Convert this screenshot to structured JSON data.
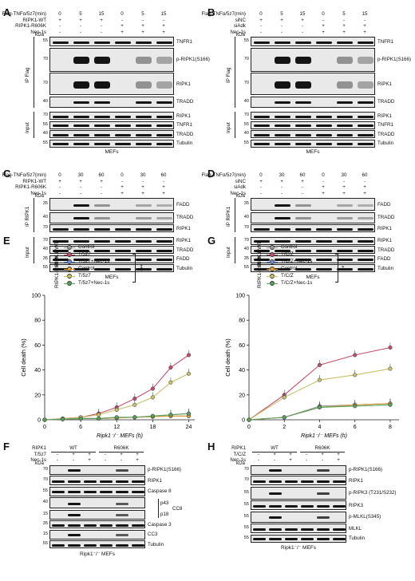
{
  "panels": {
    "A": {
      "letter": "A",
      "headers": [
        {
          "label": "Flag-TNFα/5z7(min)",
          "values": [
            "0",
            "5",
            "15",
            "0",
            "5",
            "15"
          ]
        },
        {
          "label": "RIPK1-WT",
          "values": [
            "+",
            "+",
            "+",
            "-",
            "-",
            "-"
          ]
        },
        {
          "label": "RIPK1-R606K",
          "values": [
            "-",
            "-",
            "-",
            "+",
            "+",
            "+"
          ]
        },
        {
          "label": "Nec-1s",
          "values": [
            "-",
            "-",
            "-",
            "+",
            "+",
            "+"
          ]
        }
      ],
      "kda": "kDa",
      "group1": "IP Flag",
      "group2": "Input",
      "blots": [
        {
          "mw": "55",
          "label": "TNFR1"
        },
        {
          "mw": "70",
          "label": "p-RIPK1(S166)"
        },
        {
          "mw": "70",
          "label": "RIPK1"
        },
        {
          "mw": "40",
          "label": "TRADD"
        },
        {
          "mw": "70",
          "label": "RIPK1"
        },
        {
          "mw": "55",
          "label": "TNFR1"
        },
        {
          "mw": "40",
          "label": "TRADD"
        },
        {
          "mw": "55",
          "label": "Tubulin"
        }
      ],
      "footer": "MEFs"
    },
    "B": {
      "letter": "B",
      "headers": [
        {
          "label": "Flag-TNFα/5z7(min)",
          "values": [
            "0",
            "5",
            "15",
            "0",
            "5",
            "15"
          ]
        },
        {
          "label": "siNC",
          "values": [
            "+",
            "+",
            "+",
            "-",
            "-",
            "-"
          ]
        },
        {
          "label": "siAdk",
          "values": [
            "-",
            "-",
            "-",
            "+",
            "+",
            "+"
          ]
        },
        {
          "label": "Nec-1s",
          "values": [
            "-",
            "-",
            "-",
            "+",
            "+",
            "+"
          ]
        }
      ],
      "kda": "kDa",
      "group1": "IP Flag",
      "group2": "Input",
      "blots": [
        {
          "mw": "55",
          "label": "TNFR1"
        },
        {
          "mw": "70",
          "label": "p-RIPK1(S166)"
        },
        {
          "mw": "70",
          "label": "RIPK1"
        },
        {
          "mw": "40",
          "label": "TRADD"
        },
        {
          "mw": "70",
          "label": "RIPK1"
        },
        {
          "mw": "55",
          "label": "TNFR1"
        },
        {
          "mw": "40",
          "label": "TRADD"
        },
        {
          "mw": "55",
          "label": "Tubulin"
        }
      ],
      "footer": "MEFs"
    },
    "C": {
      "letter": "C",
      "headers": [
        {
          "label": "Flag-TNFα/5z7(min)",
          "values": [
            "0",
            "30",
            "60",
            "0",
            "30",
            "60"
          ]
        },
        {
          "label": "RIPK1-WT",
          "values": [
            "+",
            "+",
            "+",
            "-",
            "-",
            "-"
          ]
        },
        {
          "label": "RIPK1-R606K",
          "values": [
            "-",
            "-",
            "-",
            "+",
            "+",
            "+"
          ]
        },
        {
          "label": "Nec-1s",
          "values": [
            "-",
            "-",
            "-",
            "+",
            "+",
            "+"
          ]
        }
      ],
      "kda": "kDa",
      "group1": "IP RIPK1",
      "group2": "Input",
      "blots": [
        {
          "mw": "35",
          "label": "FADD"
        },
        {
          "mw": "40",
          "label": "TRADD"
        },
        {
          "mw": "70",
          "label": "RIPK1"
        },
        {
          "mw": "70",
          "label": "RIPK1"
        },
        {
          "mw": "40",
          "label": "TRADD"
        },
        {
          "mw": "35",
          "label": "FADD"
        },
        {
          "mw": "55",
          "label": "Tubulin"
        }
      ],
      "footer": "MEFs"
    },
    "D": {
      "letter": "D",
      "headers": [
        {
          "label": "Flag-TNFα/5z7(min)",
          "values": [
            "0",
            "30",
            "60",
            "0",
            "30",
            "60"
          ]
        },
        {
          "label": "siNC",
          "values": [
            "+",
            "+",
            "+",
            "-",
            "-",
            "-"
          ]
        },
        {
          "label": "siAdk",
          "values": [
            "-",
            "-",
            "-",
            "+",
            "+",
            "+"
          ]
        },
        {
          "label": "Nec-1s",
          "values": [
            "-",
            "-",
            "-",
            "+",
            "+",
            "+"
          ]
        }
      ],
      "kda": "kDa",
      "group1": "IP RIPK1",
      "group2": "Input",
      "blots": [
        {
          "mw": "35",
          "label": "FADD"
        },
        {
          "mw": "40",
          "label": "TRADD"
        },
        {
          "mw": "70",
          "label": "RIPK1"
        },
        {
          "mw": "70",
          "label": "RIPK1"
        },
        {
          "mw": "40",
          "label": "TRADD"
        },
        {
          "mw": "35",
          "label": "FADD"
        },
        {
          "mw": "55",
          "label": "Tubulin"
        }
      ],
      "footer": "MEFs"
    },
    "F": {
      "letter": "F",
      "headers": [
        {
          "label": "RIPK1",
          "values": [
            "WT",
            "R606K"
          ]
        },
        {
          "label": "T/5z7",
          "values": [
            "-",
            "+",
            "+",
            "-",
            "+",
            "+"
          ]
        },
        {
          "label": "Nec-1s",
          "values": [
            "-",
            "-",
            "+",
            "-",
            "-",
            "+"
          ]
        }
      ],
      "kda": "kDa",
      "blots": [
        {
          "mw": "70",
          "label": "p-RIPK1(S166)"
        },
        {
          "mw": "70",
          "label": "RIPK1"
        },
        {
          "mw": "55",
          "label": "Caspase 8"
        },
        {
          "mw": "40",
          "label": "p43"
        },
        {
          "mw": "15",
          "label": "p18"
        },
        {
          "mw": "35",
          "label": "Caspase 3"
        },
        {
          "mw": "15",
          "label": "CC3"
        },
        {
          "mw": "55",
          "label": "Tubulin"
        }
      ],
      "cc8": "CC8",
      "footer": "Ripk1⁻/⁻ MEFs"
    },
    "H": {
      "letter": "H",
      "headers": [
        {
          "label": "RIPK1",
          "values": [
            "WT",
            "R606K"
          ]
        },
        {
          "label": "T/C/Z",
          "values": [
            "-",
            "+",
            "+",
            "-",
            "+",
            "+"
          ]
        },
        {
          "label": "Nec-1s",
          "values": [
            "-",
            "-",
            "+",
            "-",
            "-",
            "+"
          ]
        }
      ],
      "kda": "kDa",
      "blots": [
        {
          "mw": "70",
          "label": "p-RIPK1(S166)"
        },
        {
          "mw": "70",
          "label": "RIPK1"
        },
        {
          "mw": "55",
          "label": "p-RIPK3 (T231/S232)"
        },
        {
          "mw": "55",
          "label": "RIPK3"
        },
        {
          "mw": "55",
          "label": "p-MLKL(S345)"
        },
        {
          "mw": "55",
          "label": "MLKL"
        },
        {
          "mw": "55",
          "label": "Tubulin"
        }
      ],
      "footer": "Ripk1⁻/⁻ MEFs"
    }
  },
  "charts": {
    "E_letter": "E",
    "G_letter": "G",
    "E_group1": "RIPK1-WT",
    "E_group2": "RIPK1-R606K",
    "G_group1": "RIPK1-WT",
    "G_group2": "RIPK1-R606K",
    "E_sig": "***",
    "G_sig": "**"
  },
  "chart_data": [
    {
      "type": "line",
      "panel": "E",
      "xlabel": "Ripk1⁻/⁻ MEFs (h)",
      "ylabel": "Cell death (%)",
      "x": [
        0,
        3,
        6,
        9,
        12,
        15,
        18,
        21,
        24
      ],
      "xticks": [
        0,
        6,
        12,
        18,
        24
      ],
      "yticks": [
        0,
        20,
        40,
        60,
        80,
        100
      ],
      "ylim": [
        0,
        100
      ],
      "xlim": [
        0,
        25
      ],
      "series": [
        {
          "name": "Control",
          "group": "RIPK1-WT",
          "color": "#9a9a9a",
          "values": [
            0,
            0.5,
            1,
            1,
            1.5,
            2,
            2.5,
            3,
            3
          ]
        },
        {
          "name": "T/5z7",
          "group": "RIPK1-WT",
          "color": "#c0506a",
          "values": [
            0,
            1,
            2,
            5,
            10,
            17,
            25,
            42,
            52
          ]
        },
        {
          "name": "T/5z7+Nec-1s",
          "group": "RIPK1-WT",
          "color": "#6f8ed8",
          "values": [
            0,
            0.5,
            1,
            1,
            2,
            2,
            3,
            4,
            5
          ]
        },
        {
          "name": "Control",
          "group": "RIPK1-R606K",
          "color": "#e0a030",
          "values": [
            0,
            0.5,
            1,
            1,
            1.5,
            2,
            2.5,
            3,
            3
          ]
        },
        {
          "name": "T/5z7",
          "group": "RIPK1-R606K",
          "color": "#c8c06a",
          "values": [
            0,
            1,
            2,
            4,
            8,
            12,
            18,
            30,
            37
          ]
        },
        {
          "name": "T/5z7+Nec-1s",
          "group": "RIPK1-R606K",
          "color": "#5aa05a",
          "values": [
            0,
            0.5,
            1,
            1,
            2,
            2,
            3,
            4,
            5
          ]
        }
      ]
    },
    {
      "type": "line",
      "panel": "G",
      "xlabel": "Ripk1⁻/⁻ MEFs (h)",
      "ylabel": "Cell death (%)",
      "x": [
        0,
        2,
        4,
        6,
        8
      ],
      "xticks": [
        0,
        2,
        4,
        6,
        8
      ],
      "yticks": [
        0,
        20,
        40,
        60,
        80,
        100
      ],
      "ylim": [
        0,
        100
      ],
      "xlim": [
        0,
        8.5
      ],
      "series": [
        {
          "name": "Control",
          "group": "RIPK1-WT",
          "color": "#9a9a9a",
          "values": [
            0,
            2,
            11,
            12,
            13
          ]
        },
        {
          "name": "T/C/Z",
          "group": "RIPK1-WT",
          "color": "#c0506a",
          "values": [
            0,
            20,
            44,
            52,
            58
          ]
        },
        {
          "name": "T/C/Z+Nec-1s",
          "group": "RIPK1-WT",
          "color": "#6f8ed8",
          "values": [
            0,
            2,
            10,
            12,
            13
          ]
        },
        {
          "name": "Control",
          "group": "RIPK1-R606K",
          "color": "#e0a030",
          "values": [
            0,
            2,
            10,
            12,
            13
          ]
        },
        {
          "name": "T/C/Z",
          "group": "RIPK1-R606K",
          "color": "#c8c06a",
          "values": [
            0,
            18,
            32,
            36,
            41
          ]
        },
        {
          "name": "T/C/Z+Nec-1s",
          "group": "RIPK1-R606K",
          "color": "#5aa05a",
          "values": [
            0,
            2,
            10,
            11,
            12
          ]
        }
      ]
    }
  ]
}
